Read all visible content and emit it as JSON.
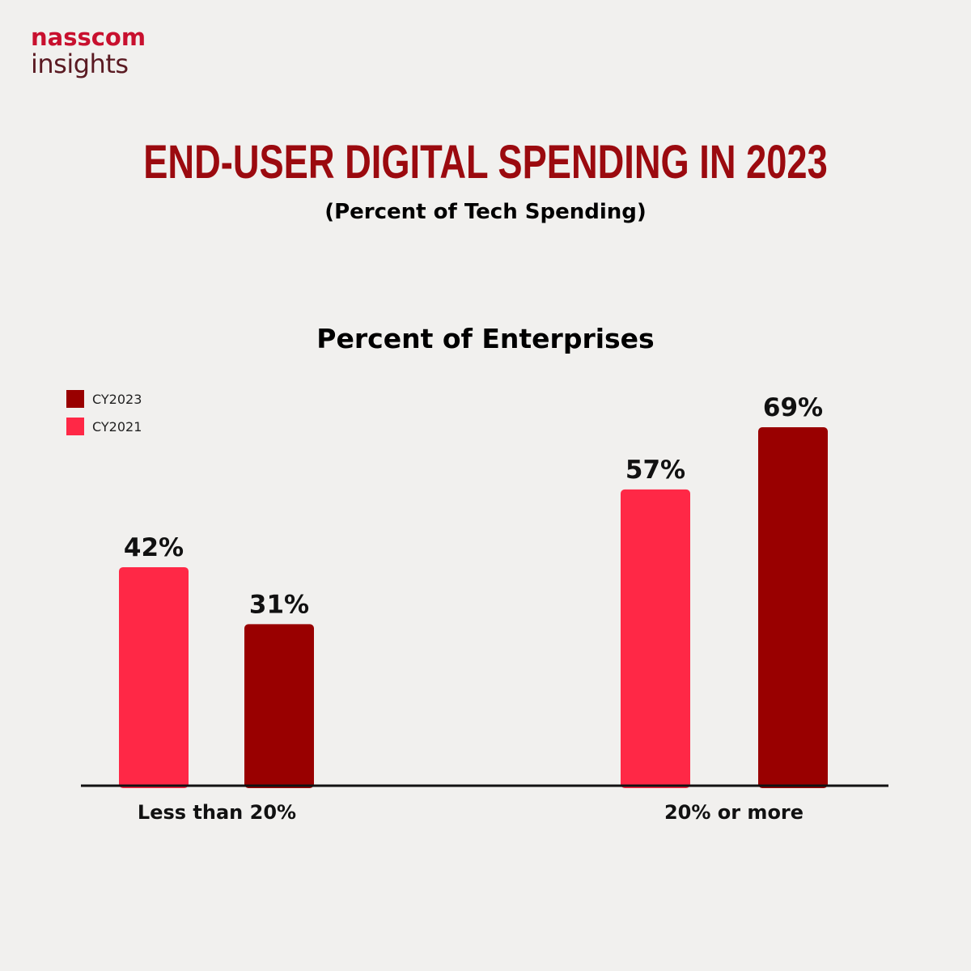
{
  "brand": {
    "name_top": "nasscom",
    "name_bottom": "insights",
    "color_top": "#c8102e",
    "color_bottom": "#5a1a22"
  },
  "header": {
    "title": "END-USER DIGITAL SPENDING IN 2023",
    "subtitle": "(Percent of Tech Spending)",
    "title_color": "#9b0a0f"
  },
  "chart_data": {
    "type": "bar",
    "title": "Percent of Enterprises",
    "categories": [
      "Less than 20%",
      "20% or more"
    ],
    "series": [
      {
        "name": "CY2021",
        "color": "#ff2846",
        "values": [
          42,
          57
        ]
      },
      {
        "name": "CY2023",
        "color": "#990000",
        "values": [
          31,
          69
        ]
      }
    ],
    "value_suffix": "%",
    "legend_order": [
      "CY2023",
      "CY2021"
    ],
    "legend_position": "top-left",
    "ylim": [
      0,
      100
    ],
    "grid": false
  }
}
